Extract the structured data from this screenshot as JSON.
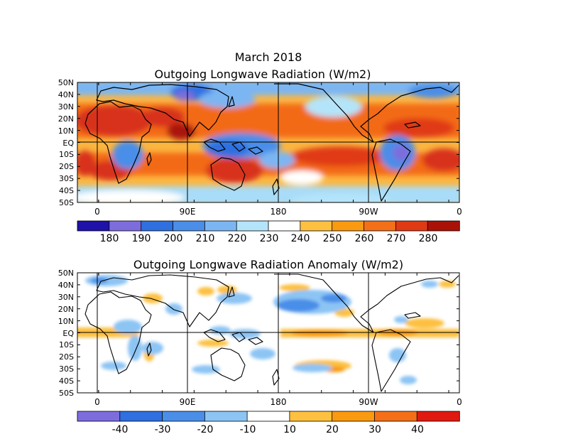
{
  "title": "March 2018",
  "panels": [
    {
      "title": "Outgoing Longwave Radiation (W/m2)",
      "lat_labels": [
        "50N",
        "40N",
        "30N",
        "20N",
        "10N",
        "EQ",
        "10S",
        "20S",
        "30S",
        "40S",
        "50S"
      ],
      "lon_labels": [
        "0",
        "90E",
        "180",
        "90W",
        "0"
      ],
      "colorbar": {
        "labels": [
          "180",
          "190",
          "200",
          "210",
          "220",
          "230",
          "240",
          "250",
          "260",
          "270",
          "280"
        ],
        "colors": [
          "#1f12a8",
          "#7d6ddc",
          "#2f6fe0",
          "#4a8ee8",
          "#7cb6f2",
          "#b4e4fa",
          "#ffffff",
          "#fdc040",
          "#f99a10",
          "#f47018",
          "#e03a14",
          "#aa1208"
        ]
      }
    },
    {
      "title": "Outgoing Longwave Radiation Anomaly (W/m2)",
      "lat_labels": [
        "50N",
        "40N",
        "30N",
        "20N",
        "10N",
        "EQ",
        "10S",
        "20S",
        "30S",
        "40S",
        "50S"
      ],
      "lon_labels": [
        "0",
        "90E",
        "180",
        "90W",
        "0"
      ],
      "colorbar": {
        "labels": [
          "-40",
          "-30",
          "-20",
          "-10",
          "10",
          "20",
          "30",
          "40"
        ],
        "colors": [
          "#7d6ddc",
          "#2f6fe0",
          "#4a8ee8",
          "#8cc4f4",
          "#ffffff",
          "#fdc040",
          "#f99a10",
          "#f47018",
          "#e01a10"
        ]
      }
    }
  ]
}
